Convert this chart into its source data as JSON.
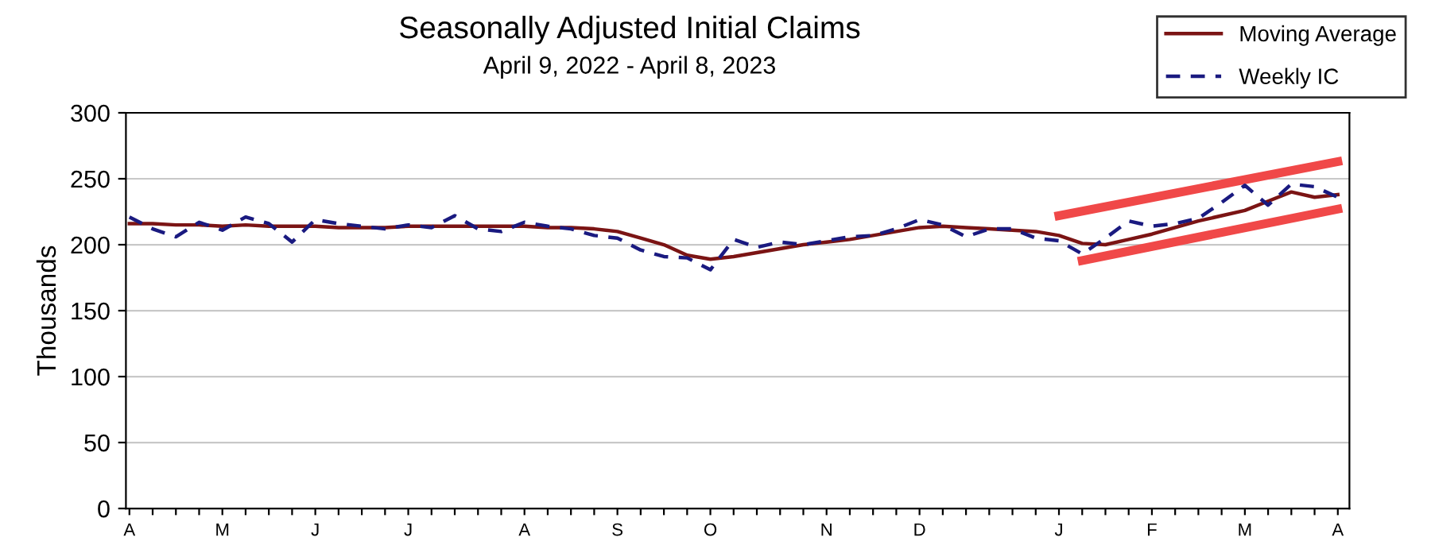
{
  "chart_data": {
    "type": "line",
    "title": "Seasonally Adjusted Initial Claims",
    "subtitle": "April 9, 2022 - April 8, 2023",
    "ylabel": "Thousands",
    "ylim": [
      0,
      300
    ],
    "yticks": [
      0,
      50,
      100,
      150,
      200,
      250,
      300
    ],
    "categories": [
      "A",
      null,
      null,
      null,
      "M",
      null,
      null,
      null,
      "J",
      null,
      null,
      null,
      "J",
      null,
      null,
      null,
      null,
      "A",
      null,
      null,
      null,
      "S",
      null,
      null,
      null,
      "O",
      null,
      null,
      null,
      null,
      "N",
      null,
      null,
      null,
      "D",
      null,
      null,
      null,
      null,
      null,
      "J",
      null,
      null,
      null,
      "F",
      null,
      null,
      null,
      "M",
      null,
      null,
      null,
      "A"
    ],
    "grid": "y",
    "legend": "top right",
    "series": [
      {
        "name": "Moving Average",
        "color": "#7b1414",
        "line_style": "solid",
        "values": [
          216,
          216,
          215,
          215,
          214,
          215,
          214,
          214,
          214,
          213,
          213,
          213,
          214,
          214,
          214,
          214,
          214,
          214,
          213,
          213,
          212,
          210,
          205,
          200,
          192,
          189,
          191,
          194,
          197,
          200,
          202,
          204,
          207,
          210,
          213,
          214,
          213,
          212,
          211,
          210,
          207,
          201,
          200,
          204,
          208,
          213,
          218,
          222,
          226,
          233,
          240,
          236,
          238
        ]
      },
      {
        "name": "Weekly IC",
        "color": "#1a1a80",
        "line_style": "dashed",
        "values": [
          221,
          212,
          206,
          217,
          211,
          221,
          216,
          202,
          219,
          216,
          214,
          212,
          215,
          213,
          222,
          212,
          210,
          217,
          214,
          212,
          207,
          205,
          196,
          191,
          190,
          181,
          204,
          198,
          202,
          200,
          203,
          206,
          207,
          212,
          219,
          215,
          206,
          212,
          212,
          205,
          203,
          193,
          205,
          218,
          214,
          216,
          220,
          232,
          245,
          230,
          246,
          244,
          236
        ]
      },
      {
        "color": "#f04848",
        "line_style": "solid",
        "values": [
          null,
          null,
          null,
          null,
          null,
          null,
          null,
          null,
          null,
          null,
          null,
          null,
          null,
          null,
          null,
          null,
          null,
          null,
          null,
          null,
          null,
          null,
          null,
          null,
          null,
          null,
          null,
          null,
          null,
          null,
          null,
          null,
          null,
          null,
          null,
          null,
          null,
          null,
          null,
          null,
          222,
          null,
          null,
          null,
          null,
          null,
          null,
          null,
          null,
          null,
          null,
          null,
          263
        ]
      },
      {
        "color": "#f04848",
        "line_style": "solid",
        "values": [
          null,
          null,
          null,
          null,
          null,
          null,
          null,
          null,
          null,
          null,
          null,
          null,
          null,
          null,
          null,
          null,
          null,
          null,
          null,
          null,
          null,
          null,
          null,
          null,
          null,
          null,
          null,
          null,
          null,
          null,
          null,
          null,
          null,
          null,
          null,
          null,
          null,
          null,
          null,
          null,
          null,
          188,
          null,
          null,
          null,
          null,
          null,
          null,
          null,
          null,
          null,
          null,
          227
        ]
      }
    ]
  }
}
